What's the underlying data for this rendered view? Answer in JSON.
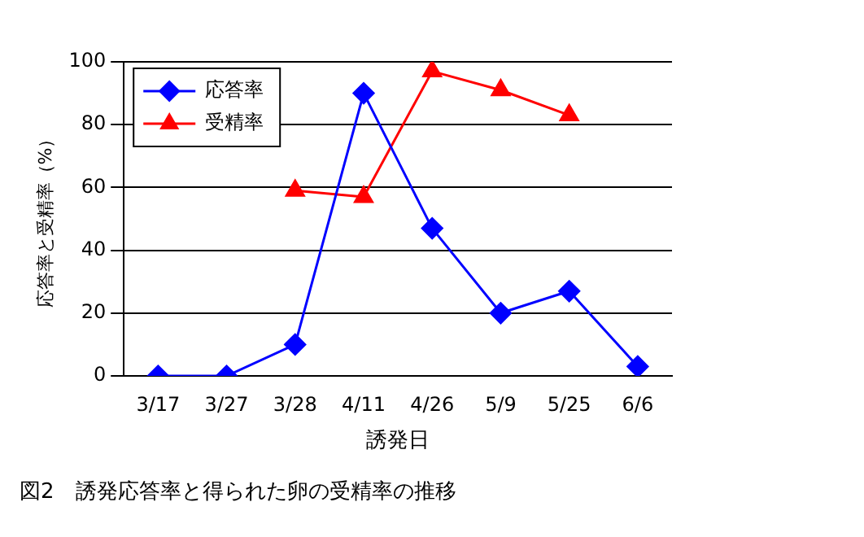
{
  "chart_data": {
    "type": "line",
    "xlabel": "誘発日",
    "ylabel": "応答率と受精率（%）",
    "categories": [
      "3/17",
      "3/27",
      "3/28",
      "4/11",
      "4/26",
      "5/9",
      "5/25",
      "6/6"
    ],
    "series": [
      {
        "name": "応答率",
        "color": "#0000ff",
        "marker": "diamond",
        "values": [
          0,
          0,
          10,
          90,
          47,
          20,
          27,
          3
        ]
      },
      {
        "name": "受精率",
        "color": "#ff0000",
        "marker": "triangle",
        "values": [
          null,
          null,
          59,
          57,
          97,
          91,
          83,
          null
        ]
      }
    ],
    "ylim": [
      0,
      100
    ],
    "yticks": [
      0,
      20,
      40,
      60,
      80,
      100
    ],
    "grid": "y",
    "legend": "top left",
    "line_style": "solid",
    "annotations": [
      "図2　誘発応答率と得られた卵の受精率の推移"
    ]
  }
}
